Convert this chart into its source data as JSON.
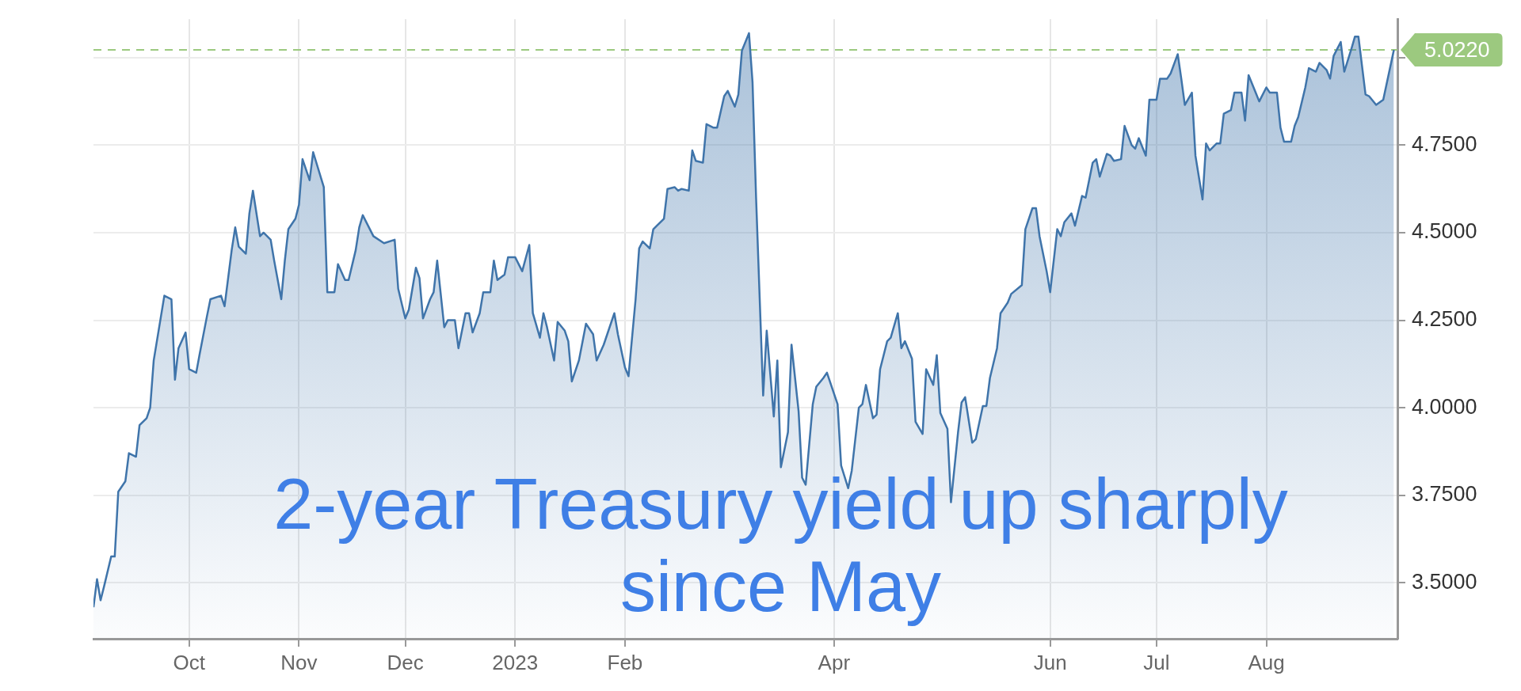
{
  "chart_data": {
    "type": "area",
    "annotations": [
      "2-year Treasury yield up sharply since May"
    ],
    "x": [
      "2022-09-04",
      "2022-09-05",
      "2022-09-06",
      "2022-09-07",
      "2022-09-09",
      "2022-09-10",
      "2022-09-11",
      "2022-09-13",
      "2022-09-14",
      "2022-09-16",
      "2022-09-17",
      "2022-09-19",
      "2022-09-20",
      "2022-09-21",
      "2022-09-24",
      "2022-09-26",
      "2022-09-27",
      "2022-09-28",
      "2022-09-30",
      "2022-10-01",
      "2022-10-03",
      "2022-10-04",
      "2022-10-06",
      "2022-10-07",
      "2022-10-10",
      "2022-10-11",
      "2022-10-13",
      "2022-10-14",
      "2022-10-15",
      "2022-10-17",
      "2022-10-18",
      "2022-10-19",
      "2022-10-21",
      "2022-10-22",
      "2022-10-24",
      "2022-10-25",
      "2022-10-27",
      "2022-10-28",
      "2022-10-29",
      "2022-10-31",
      "2022-11-01",
      "2022-11-02",
      "2022-11-04",
      "2022-11-05",
      "2022-11-08",
      "2022-11-09",
      "2022-11-11",
      "2022-11-12",
      "2022-11-14",
      "2022-11-15",
      "2022-11-17",
      "2022-11-18",
      "2022-11-19",
      "2022-11-22",
      "2022-11-25",
      "2022-11-28",
      "2022-11-29",
      "2022-12-01",
      "2022-12-02",
      "2022-12-04",
      "2022-12-05",
      "2022-12-06",
      "2022-12-08",
      "2022-12-09",
      "2022-12-10",
      "2022-12-12",
      "2022-12-13",
      "2022-12-15",
      "2022-12-16",
      "2022-12-18",
      "2022-12-19",
      "2022-12-20",
      "2022-12-22",
      "2022-12-23",
      "2022-12-25",
      "2022-12-26",
      "2022-12-27",
      "2022-12-29",
      "2022-12-30",
      "2023-01-01",
      "2023-01-03",
      "2023-01-05",
      "2023-01-06",
      "2023-01-08",
      "2023-01-09",
      "2023-01-10",
      "2023-01-12",
      "2023-01-13",
      "2023-01-15",
      "2023-01-16",
      "2023-01-17",
      "2023-01-19",
      "2023-01-21",
      "2023-01-23",
      "2023-01-24",
      "2023-01-26",
      "2023-01-27",
      "2023-01-29",
      "2023-01-30",
      "2023-02-01",
      "2023-02-02",
      "2023-02-04",
      "2023-02-05",
      "2023-02-06",
      "2023-02-08",
      "2023-02-09",
      "2023-02-10",
      "2023-02-12",
      "2023-02-13",
      "2023-02-15",
      "2023-02-16",
      "2023-02-17",
      "2023-02-19",
      "2023-02-20",
      "2023-02-21",
      "2023-02-23",
      "2023-02-24",
      "2023-02-26",
      "2023-02-27",
      "2023-03-01",
      "2023-03-02",
      "2023-03-04",
      "2023-03-05",
      "2023-03-06",
      "2023-03-08",
      "2023-03-09",
      "2023-03-10",
      "2023-03-12",
      "2023-03-13",
      "2023-03-15",
      "2023-03-16",
      "2023-03-17",
      "2023-03-19",
      "2023-03-20",
      "2023-03-22",
      "2023-03-23",
      "2023-03-24",
      "2023-03-26",
      "2023-03-27",
      "2023-03-29",
      "2023-03-30",
      "2023-03-31",
      "2023-04-02",
      "2023-04-03",
      "2023-04-05",
      "2023-04-06",
      "2023-04-08",
      "2023-04-09",
      "2023-04-10",
      "2023-04-12",
      "2023-04-13",
      "2023-04-14",
      "2023-04-16",
      "2023-04-17",
      "2023-04-19",
      "2023-04-20",
      "2023-04-21",
      "2023-04-23",
      "2023-04-24",
      "2023-04-26",
      "2023-04-27",
      "2023-04-29",
      "2023-04-30",
      "2023-05-01",
      "2023-05-03",
      "2023-05-04",
      "2023-05-06",
      "2023-05-07",
      "2023-05-08",
      "2023-05-10",
      "2023-05-11",
      "2023-05-13",
      "2023-05-14",
      "2023-05-15",
      "2023-05-17",
      "2023-05-18",
      "2023-05-20",
      "2023-05-21",
      "2023-05-24",
      "2023-05-25",
      "2023-05-27",
      "2023-05-28",
      "2023-05-29",
      "2023-05-31",
      "2023-06-01",
      "2023-06-03",
      "2023-06-04",
      "2023-06-05",
      "2023-06-07",
      "2023-06-08",
      "2023-06-10",
      "2023-06-11",
      "2023-06-13",
      "2023-06-14",
      "2023-06-15",
      "2023-06-17",
      "2023-06-18",
      "2023-06-19",
      "2023-06-21",
      "2023-06-22",
      "2023-06-24",
      "2023-06-25",
      "2023-06-26",
      "2023-06-28",
      "2023-06-29",
      "2023-07-01",
      "2023-07-02",
      "2023-07-04",
      "2023-07-05",
      "2023-07-07",
      "2023-07-08",
      "2023-07-09",
      "2023-07-11",
      "2023-07-12",
      "2023-07-14",
      "2023-07-15",
      "2023-07-16",
      "2023-07-18",
      "2023-07-19",
      "2023-07-20",
      "2023-07-22",
      "2023-07-23",
      "2023-07-25",
      "2023-07-26",
      "2023-07-27",
      "2023-07-29",
      "2023-07-30",
      "2023-08-01",
      "2023-08-02",
      "2023-08-04",
      "2023-08-05",
      "2023-08-06",
      "2023-08-08",
      "2023-08-09",
      "2023-08-10",
      "2023-08-12",
      "2023-08-13",
      "2023-08-15",
      "2023-08-16",
      "2023-08-18",
      "2023-08-19",
      "2023-08-20",
      "2023-08-22",
      "2023-08-23",
      "2023-08-25",
      "2023-08-26",
      "2023-08-27",
      "2023-08-29",
      "2023-08-30",
      "2023-09-01",
      "2023-09-03",
      "2023-09-06"
    ],
    "series": [
      {
        "color": "#3f74aa",
        "values": [
          3.43,
          3.51,
          3.45,
          3.49,
          3.575,
          3.575,
          3.76,
          3.79,
          3.87,
          3.86,
          3.95,
          3.97,
          4.0,
          4.135,
          4.32,
          4.31,
          4.08,
          4.17,
          4.215,
          4.11,
          4.1,
          4.155,
          4.26,
          4.31,
          4.32,
          4.29,
          4.45,
          4.515,
          4.46,
          4.44,
          4.555,
          4.62,
          4.49,
          4.5,
          4.48,
          4.42,
          4.31,
          4.42,
          4.51,
          4.54,
          4.58,
          4.71,
          4.65,
          4.73,
          4.63,
          4.33,
          4.33,
          4.41,
          4.365,
          4.365,
          4.45,
          4.515,
          4.55,
          4.49,
          4.47,
          4.48,
          4.34,
          4.255,
          4.28,
          4.4,
          4.37,
          4.255,
          4.31,
          4.33,
          4.42,
          4.23,
          4.25,
          4.25,
          4.17,
          4.27,
          4.27,
          4.215,
          4.27,
          4.33,
          4.33,
          4.42,
          4.365,
          4.38,
          4.43,
          4.43,
          4.39,
          4.465,
          4.27,
          4.2,
          4.27,
          4.23,
          4.135,
          4.245,
          4.22,
          4.19,
          4.075,
          4.135,
          4.24,
          4.21,
          4.135,
          4.18,
          4.21,
          4.27,
          4.21,
          4.115,
          4.09,
          4.31,
          4.455,
          4.475,
          4.455,
          4.51,
          4.52,
          4.54,
          4.625,
          4.63,
          4.62,
          4.625,
          4.62,
          4.735,
          4.705,
          4.7,
          4.81,
          4.8,
          4.8,
          4.89,
          4.905,
          4.86,
          4.895,
          5.02,
          5.07,
          4.93,
          4.6,
          4.035,
          4.22,
          3.975,
          4.135,
          3.83,
          3.93,
          4.18,
          3.99,
          3.8,
          3.78,
          4.01,
          4.06,
          4.085,
          4.1,
          4.07,
          4.01,
          3.835,
          3.77,
          3.82,
          4.0,
          4.01,
          4.065,
          3.97,
          3.98,
          4.11,
          4.19,
          4.2,
          4.27,
          4.17,
          4.19,
          4.14,
          3.96,
          3.925,
          4.11,
          4.065,
          4.15,
          3.985,
          3.94,
          3.73,
          3.93,
          4.015,
          4.03,
          3.9,
          3.91,
          4.005,
          4.005,
          4.085,
          4.17,
          4.27,
          4.3,
          4.325,
          4.35,
          4.51,
          4.57,
          4.57,
          4.49,
          4.39,
          4.33,
          4.51,
          4.49,
          4.53,
          4.555,
          4.52,
          4.605,
          4.6,
          4.7,
          4.71,
          4.66,
          4.725,
          4.72,
          4.705,
          4.71,
          4.805,
          4.75,
          4.74,
          4.77,
          4.72,
          4.88,
          4.88,
          4.94,
          4.94,
          4.955,
          5.01,
          4.94,
          4.865,
          4.9,
          4.72,
          4.595,
          4.755,
          4.735,
          4.755,
          4.755,
          4.84,
          4.85,
          4.9,
          4.9,
          4.82,
          4.95,
          4.9,
          4.875,
          4.915,
          4.9,
          4.9,
          4.8,
          4.76,
          4.76,
          4.805,
          4.83,
          4.915,
          4.97,
          4.96,
          4.985,
          4.965,
          4.94,
          5.005,
          5.045,
          4.96,
          5.025,
          5.06,
          5.06,
          4.895,
          4.89,
          4.865,
          4.88,
          5.022
        ]
      }
    ],
    "xlim": [
      "2022-09-04",
      "2023-09-07"
    ],
    "xticks": [
      {
        "value": "2022-10-01",
        "label": "Oct"
      },
      {
        "value": "2022-11-01",
        "label": "Nov"
      },
      {
        "value": "2022-12-01",
        "label": "Dec"
      },
      {
        "value": "2023-01-01",
        "label": "2023"
      },
      {
        "value": "2023-02-01",
        "label": "Feb"
      },
      {
        "value": "2023-04-01",
        "label": "Apr"
      },
      {
        "value": "2023-06-01",
        "label": "Jun"
      },
      {
        "value": "2023-07-01",
        "label": "Jul"
      },
      {
        "value": "2023-08-01",
        "label": "Aug"
      }
    ],
    "ylim": [
      3.34,
      5.11
    ],
    "yticks": [
      {
        "value": 3.5,
        "label": "3.5000"
      },
      {
        "value": 3.75,
        "label": "3.7500"
      },
      {
        "value": 4,
        "label": "4.0000"
      },
      {
        "value": 4.25,
        "label": "4.2500"
      },
      {
        "value": 4.5,
        "label": "4.5000"
      },
      {
        "value": 4.75,
        "label": "4.7500"
      },
      {
        "value": 5,
        "label": null
      }
    ],
    "grid": true,
    "ref_lines": [
      {
        "axis": "y",
        "value": 5.022,
        "label": "5.0220",
        "color": "#9cc97f",
        "line_style": "dashed"
      }
    ]
  }
}
